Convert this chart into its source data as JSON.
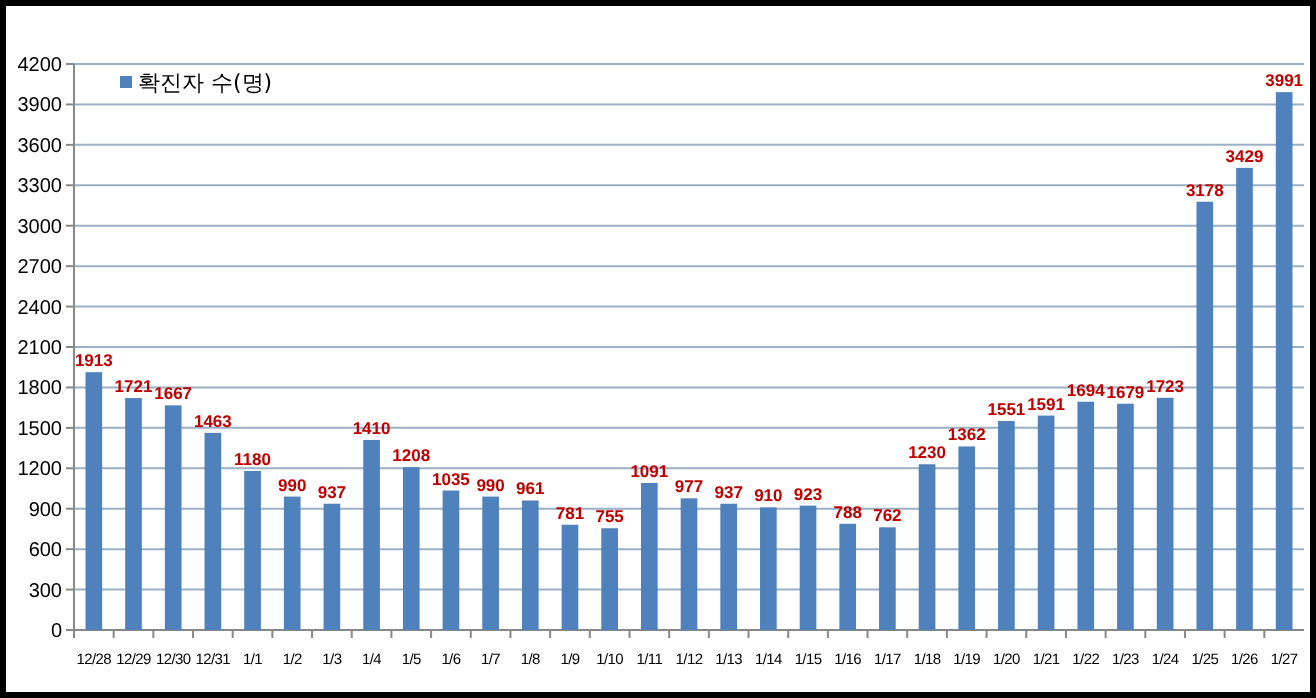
{
  "chart_data": {
    "type": "bar",
    "categories": [
      "12/28",
      "12/29",
      "12/30",
      "12/31",
      "1/1",
      "1/2",
      "1/3",
      "1/4",
      "1/5",
      "1/6",
      "1/7",
      "1/8",
      "1/9",
      "1/10",
      "1/11",
      "1/12",
      "1/13",
      "1/14",
      "1/15",
      "1/16",
      "1/17",
      "1/18",
      "1/19",
      "1/20",
      "1/21",
      "1/22",
      "1/23",
      "1/24",
      "1/25",
      "1/26",
      "1/27"
    ],
    "series": [
      {
        "name": "확진자 수(명)",
        "color": "#4f81bd",
        "values": [
          1913,
          1721,
          1667,
          1463,
          1180,
          990,
          937,
          1410,
          1208,
          1035,
          990,
          961,
          781,
          755,
          1091,
          977,
          937,
          910,
          923,
          788,
          762,
          1230,
          1362,
          1551,
          1591,
          1694,
          1679,
          1723,
          3178,
          3429,
          3991
        ]
      }
    ],
    "ylim": [
      0,
      4200
    ],
    "yticks": [
      0,
      300,
      600,
      900,
      1200,
      1500,
      1800,
      2100,
      2400,
      2700,
      3000,
      3300,
      3600,
      3900,
      4200
    ],
    "grid": "y",
    "legend": "top left",
    "data_labels": true
  }
}
